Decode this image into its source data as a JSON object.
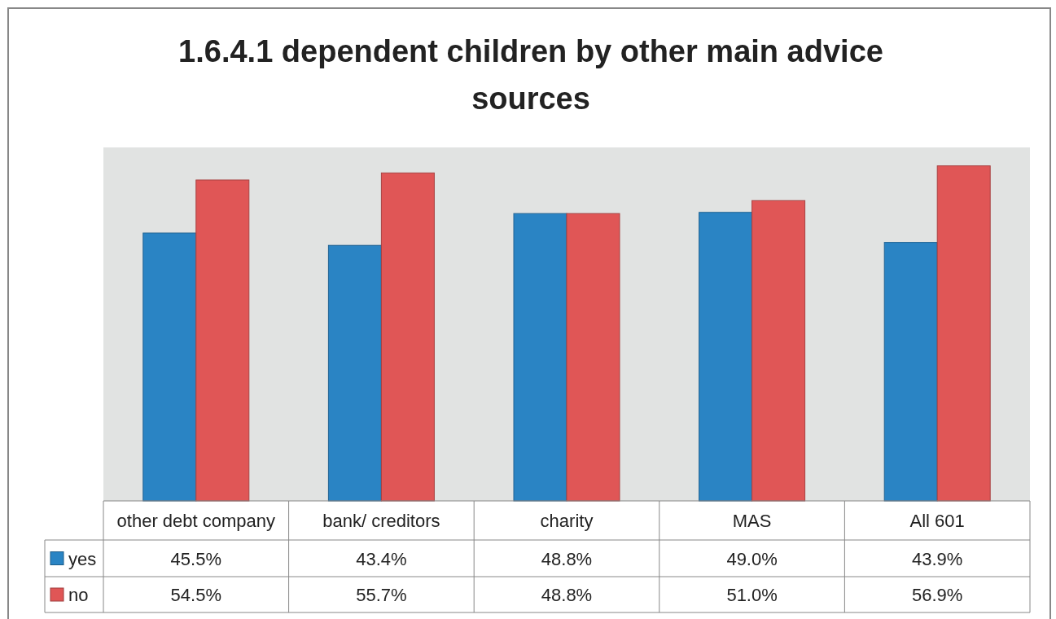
{
  "chart_data": {
    "type": "bar",
    "title": "1.6.4.1 dependent children by other main advice sources",
    "categories": [
      "other debt company",
      "bank/ creditors",
      "charity",
      "MAS",
      "All 601"
    ],
    "series": [
      {
        "name": "yes",
        "color": "#2a84c4",
        "values": [
          45.5,
          43.4,
          48.8,
          49.0,
          43.9
        ],
        "value_labels": [
          "45.5%",
          "43.4%",
          "48.8%",
          "49.0%",
          "43.9%"
        ]
      },
      {
        "name": "no",
        "color": "#e05656",
        "values": [
          54.5,
          55.7,
          48.8,
          51.0,
          56.9
        ],
        "value_labels": [
          "54.5%",
          "55.7%",
          "48.8%",
          "51.0%",
          "56.9%"
        ]
      }
    ],
    "legend": "bottom left"
  }
}
